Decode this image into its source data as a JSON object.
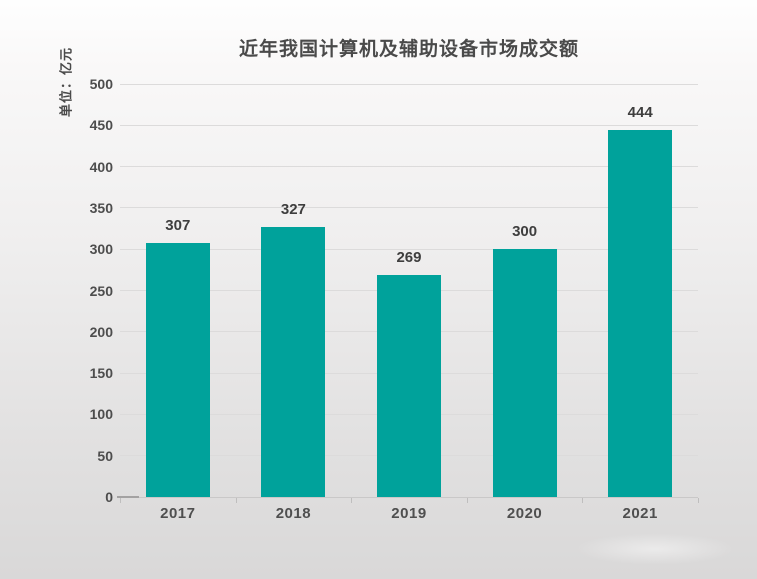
{
  "title": "近年我国计算机及辅助设备市场成交额",
  "y_axis_unit": "单位：亿元",
  "colors": {
    "bar": "#00a29b",
    "title_text": "#4a4a4a",
    "tick_text": "#4d4d4d",
    "value_text": "#3e3e3e",
    "gridline": "#dcdbdb",
    "axis_line": "#c9c8c8",
    "background_top": "#fefefe",
    "background_bottom": "#d9d8d8"
  },
  "chart_data": {
    "type": "bar",
    "title": "近年我国计算机及辅助设备市场成交额",
    "categories": [
      "2017",
      "2018",
      "2019",
      "2020",
      "2021"
    ],
    "values": [
      307,
      327,
      269,
      300,
      444
    ],
    "xlabel": "",
    "ylabel": "单位：亿元",
    "ylim": [
      0,
      500
    ],
    "yticks": [
      0,
      50,
      100,
      150,
      200,
      250,
      300,
      350,
      400,
      450,
      500
    ],
    "grid": true,
    "legend": false,
    "bar_color": "#00a29b",
    "value_labels_shown": true
  }
}
